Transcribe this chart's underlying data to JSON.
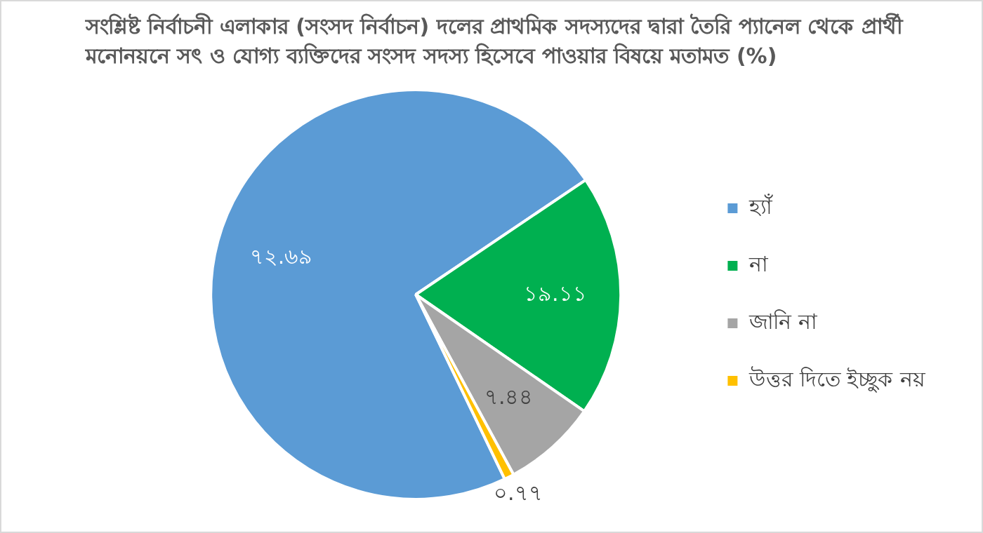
{
  "chart_data": {
    "type": "pie",
    "title": "সংশ্লিষ্ট নির্বাচনী এলাকার (সংসদ নির্বাচন) দলের প্রাথমিক সদস্যদের দ্বারা তৈরি প্যানেল থেকে প্রার্থী মনোনয়নে সৎ ও যোগ্য ব্যক্তিদের সংসদ সদস্য হিসেবে পাওয়ার বিষয়ে মতামত (%)",
    "categories": [
      "হ্যাঁ",
      "না",
      "জানি না",
      "উত্তর দিতে ইচ্ছুক নয়"
    ],
    "values": [
      72.69,
      19.11,
      7.44,
      0.77
    ],
    "value_labels": [
      "৭২.৬৯",
      "১৯.১১",
      "৭.৪৪",
      "০.৭৭"
    ],
    "colors": [
      "#5b9bd5",
      "#00b050",
      "#a5a5a5",
      "#ffc000"
    ],
    "legend": "right"
  }
}
